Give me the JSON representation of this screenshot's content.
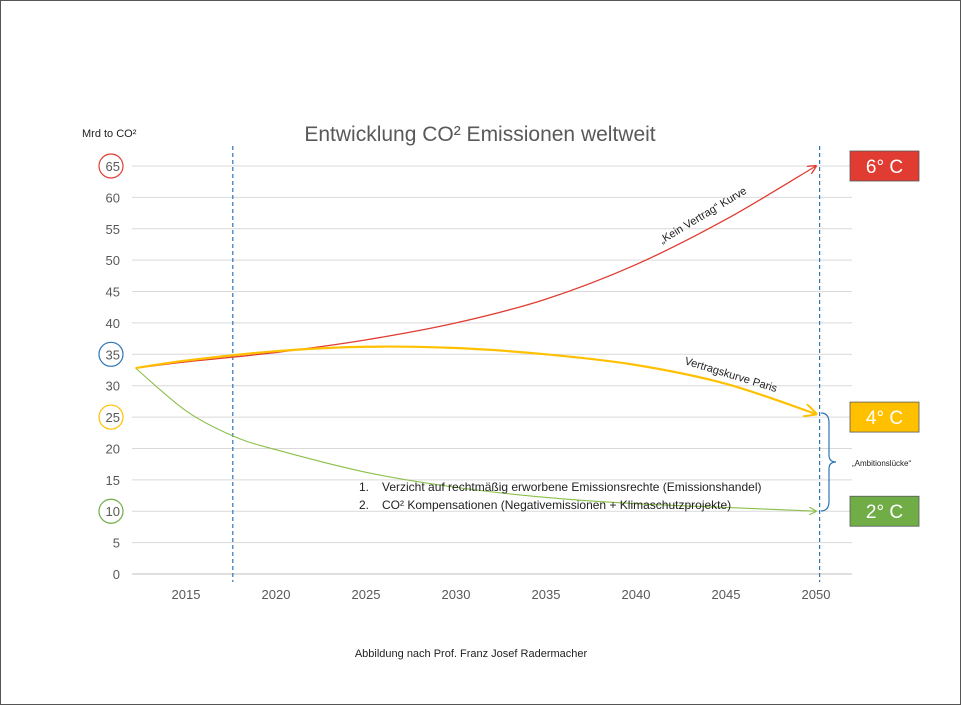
{
  "chart_data": {
    "type": "line",
    "title": "Entwicklung CO² Emissionen weltweit",
    "ylabel": "Mrd to CO²",
    "xlabel": "",
    "xlim": [
      2012,
      2052
    ],
    "ylim": [
      0,
      65
    ],
    "x_ticks": [
      2015,
      2020,
      2025,
      2030,
      2035,
      2040,
      2045,
      2050
    ],
    "y_ticks": [
      0,
      5,
      10,
      15,
      20,
      25,
      30,
      35,
      40,
      45,
      50,
      55,
      60,
      65
    ],
    "circled_y_ticks": [
      {
        "value": 65,
        "color": "#e03c31"
      },
      {
        "value": 35,
        "color": "#2e75b6"
      },
      {
        "value": 25,
        "color": "#ffc000"
      },
      {
        "value": 10,
        "color": "#70ad47"
      }
    ],
    "grid": true,
    "vertical_markers": [
      2017.6,
      2050.2
    ],
    "series": [
      {
        "name": "„Kein Vertrag“ Kurve",
        "color": "#e03c31",
        "x": [
          2012.2,
          2015,
          2020,
          2025,
          2030,
          2035,
          2040,
          2045,
          2050
        ],
        "y": [
          32.8,
          33.8,
          35.3,
          37.3,
          40.0,
          43.8,
          49.3,
          56.5,
          65.0
        ]
      },
      {
        "name": "Vertragskurve Paris",
        "color": "#ffc000",
        "x": [
          2012.2,
          2015,
          2020,
          2025,
          2030,
          2035,
          2040,
          2045,
          2050
        ],
        "y": [
          32.8,
          34.0,
          35.5,
          36.2,
          36.0,
          35.0,
          33.3,
          30.3,
          25.5
        ]
      },
      {
        "name": "",
        "color": "#8bbf4a",
        "x": [
          2012.2,
          2015,
          2017.6,
          2020,
          2025,
          2030,
          2035,
          2040,
          2045,
          2050
        ],
        "y": [
          32.8,
          26.0,
          22.0,
          19.8,
          16.2,
          13.8,
          12.2,
          11.2,
          10.6,
          10.0
        ]
      }
    ],
    "annotations": {
      "legend_items": [
        "Verzicht auf rechtmäßig erworbene Emissionsrechte (Emissionshandel)",
        "CO² Kompensationen (Negativemissionen + Klimaschutzprojekte)"
      ],
      "gap_label": "„Ambitionslücke“",
      "source": "Abbildung nach Prof. Franz Josef Radermacher"
    },
    "temperature_boxes": [
      {
        "label": "6° C",
        "color": "#e03c31",
        "value": 65
      },
      {
        "label": "4° C",
        "color": "#ffc000",
        "value": 25
      },
      {
        "label": "2° C",
        "color": "#70ad47",
        "value": 10
      }
    ]
  }
}
